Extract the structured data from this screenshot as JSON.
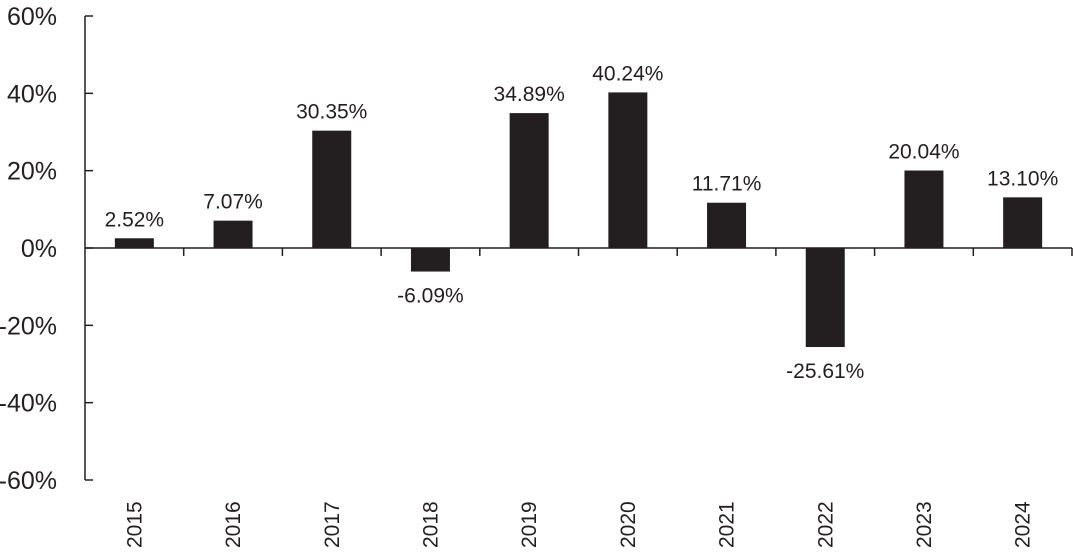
{
  "chart_data": {
    "type": "bar",
    "title": "",
    "xlabel": "",
    "ylabel": "",
    "categories": [
      "2015",
      "2016",
      "2017",
      "2018",
      "2019",
      "2020",
      "2021",
      "2022",
      "2023",
      "2024"
    ],
    "values": [
      2.52,
      7.07,
      30.35,
      -6.09,
      34.89,
      40.24,
      11.71,
      -25.61,
      20.04,
      13.1
    ],
    "data_labels": [
      "2.52%",
      "7.07%",
      "30.35%",
      "-6.09%",
      "34.89%",
      "40.24%",
      "11.71%",
      "-25.61%",
      "20.04%",
      "13.10%"
    ],
    "ylim": [
      -60,
      60
    ],
    "yticks": [
      60,
      40,
      20,
      0,
      -20,
      -40,
      -60
    ],
    "ytick_labels": [
      "60%",
      "40%",
      "20%",
      "0%",
      "-20%",
      "-40%",
      "-60%"
    ],
    "grid": false,
    "bar_color": "#231f20",
    "axis_color": "#231f20"
  }
}
